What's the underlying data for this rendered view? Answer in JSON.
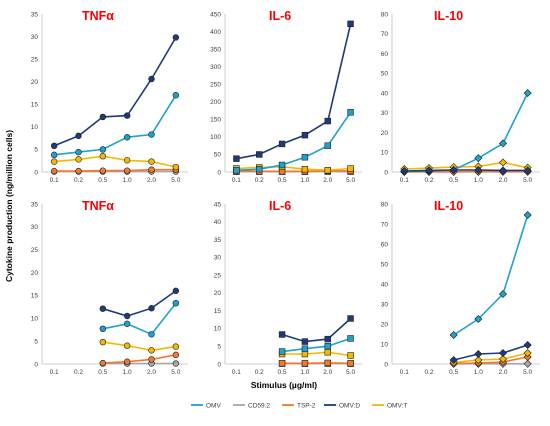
{
  "figure": {
    "ylabel": "Cytokine production (ng/million cells)",
    "xlabel": "Stimulus (µg/ml)"
  },
  "legend": [
    {
      "name": "OMV",
      "color": "#1ea0d0"
    },
    {
      "name": "CD59.2",
      "color": "#a6a6a6"
    },
    {
      "name": "TSP-2",
      "color": "#f07830"
    },
    {
      "name": "OMV:D",
      "color": "#1f3a7a"
    },
    {
      "name": "OMV:T",
      "color": "#f5b800"
    }
  ],
  "chart_data": [
    {
      "type": "line",
      "title": "TNFα",
      "categories": [
        "0.1",
        "0.2",
        "0.5",
        "1.0",
        "2.0",
        "5.0"
      ],
      "ylim": [
        0,
        35
      ],
      "yticks": [
        0,
        5,
        10,
        15,
        20,
        25,
        30,
        35
      ],
      "grid": false,
      "series": [
        {
          "name": "OMV",
          "marker": "circle",
          "values": [
            3.8,
            4.4,
            5.0,
            7.7,
            8.3,
            17.0
          ]
        },
        {
          "name": "CD59.2",
          "marker": "circle",
          "values": [
            0.1,
            0.1,
            0.1,
            0.1,
            0.1,
            0.1
          ]
        },
        {
          "name": "TSP-2",
          "marker": "circle",
          "values": [
            0.2,
            0.2,
            0.3,
            0.3,
            0.5,
            0.5
          ]
        },
        {
          "name": "OMV:D",
          "marker": "circle",
          "values": [
            5.8,
            8.0,
            12.2,
            12.5,
            20.6,
            29.8
          ]
        },
        {
          "name": "OMV:T",
          "marker": "circle",
          "values": [
            2.3,
            2.8,
            3.5,
            2.6,
            2.3,
            1.1
          ]
        }
      ]
    },
    {
      "type": "line",
      "title": "IL-6",
      "categories": [
        "0.1",
        "0.2",
        "0.5",
        "1.0",
        "2.0",
        "5.0"
      ],
      "ylim": [
        0,
        450
      ],
      "yticks": [
        0,
        50,
        100,
        150,
        200,
        250,
        300,
        350,
        400,
        450
      ],
      "grid": false,
      "series": [
        {
          "name": "OMV",
          "marker": "square",
          "values": [
            5,
            8,
            20,
            42,
            75,
            170
          ]
        },
        {
          "name": "CD59.2",
          "marker": "square",
          "values": [
            1,
            1,
            1,
            1,
            1,
            1
          ]
        },
        {
          "name": "TSP-2",
          "marker": "square",
          "values": [
            2,
            2,
            2,
            2,
            3,
            3
          ]
        },
        {
          "name": "OMV:D",
          "marker": "square",
          "values": [
            38,
            50,
            80,
            105,
            145,
            422
          ]
        },
        {
          "name": "OMV:T",
          "marker": "square",
          "values": [
            10,
            13,
            15,
            8,
            5,
            10
          ]
        }
      ]
    },
    {
      "type": "line",
      "title": "IL-10",
      "categories": [
        "0.1",
        "0.2",
        "0.5",
        "1.0",
        "2.0",
        "5.0"
      ],
      "ylim": [
        0,
        80
      ],
      "yticks": [
        0,
        10,
        20,
        30,
        40,
        50,
        60,
        70,
        80
      ],
      "grid": false,
      "series": [
        {
          "name": "OMV",
          "marker": "diamond",
          "values": [
            0.2,
            0.5,
            1.0,
            7.0,
            14.5,
            40.0
          ]
        },
        {
          "name": "CD59.2",
          "marker": "diamond",
          "values": [
            0.1,
            0.1,
            0.1,
            0.1,
            0.1,
            0.1
          ]
        },
        {
          "name": "TSP-2",
          "marker": "diamond",
          "values": [
            0.1,
            0.1,
            0.1,
            0.2,
            0.2,
            0.2
          ]
        },
        {
          "name": "OMV:D",
          "marker": "diamond",
          "values": [
            0.5,
            0.8,
            1.0,
            1.0,
            0.8,
            0.8
          ]
        },
        {
          "name": "OMV:T",
          "marker": "diamond",
          "values": [
            1.5,
            2.0,
            2.5,
            2.8,
            4.8,
            2.2
          ]
        }
      ]
    },
    {
      "type": "line",
      "title": "TNFα",
      "categories": [
        "0.1",
        "0.2",
        "0.5",
        "1.0",
        "2.0",
        "5.0"
      ],
      "ylim": [
        0,
        35
      ],
      "yticks": [
        0,
        5,
        10,
        15,
        20,
        25,
        30,
        35
      ],
      "grid": false,
      "series": [
        {
          "name": "OMV",
          "marker": "circle",
          "values": [
            null,
            null,
            7.7,
            8.8,
            6.5,
            13.3
          ]
        },
        {
          "name": "CD59.2",
          "marker": "circle",
          "values": [
            null,
            null,
            0.1,
            0.1,
            0.1,
            0.1
          ]
        },
        {
          "name": "TSP-2",
          "marker": "circle",
          "values": [
            null,
            null,
            0.2,
            0.5,
            1.0,
            2.0
          ]
        },
        {
          "name": "OMV:D",
          "marker": "circle",
          "values": [
            null,
            null,
            12.1,
            10.5,
            12.2,
            16.0
          ]
        },
        {
          "name": "OMV:T",
          "marker": "circle",
          "values": [
            null,
            null,
            4.8,
            4.0,
            3.0,
            3.8
          ]
        }
      ]
    },
    {
      "type": "line",
      "title": "IL-6",
      "categories": [
        "0.1",
        "0.2",
        "0.5",
        "1.0",
        "2.0",
        "5.0"
      ],
      "ylim": [
        0,
        45
      ],
      "yticks": [
        0,
        5,
        10,
        15,
        20,
        25,
        30,
        35,
        40,
        45
      ],
      "grid": false,
      "series": [
        {
          "name": "OMV",
          "marker": "square",
          "values": [
            null,
            null,
            3.5,
            4.3,
            5.0,
            7.2
          ]
        },
        {
          "name": "CD59.2",
          "marker": "square",
          "values": [
            null,
            null,
            0.1,
            0.1,
            0.1,
            0.1
          ]
        },
        {
          "name": "TSP-2",
          "marker": "square",
          "values": [
            null,
            null,
            0.2,
            0.2,
            0.3,
            0.2
          ]
        },
        {
          "name": "OMV:D",
          "marker": "square",
          "values": [
            null,
            null,
            8.3,
            6.3,
            7.0,
            12.8
          ]
        },
        {
          "name": "OMV:T",
          "marker": "square",
          "values": [
            null,
            null,
            2.8,
            2.8,
            3.3,
            2.4
          ]
        }
      ]
    },
    {
      "type": "line",
      "title": "IL-10",
      "categories": [
        "0.1",
        "0.2",
        "0.5",
        "1.0",
        "2.0",
        "5.0"
      ],
      "ylim": [
        0,
        80
      ],
      "yticks": [
        0,
        10,
        20,
        30,
        40,
        50,
        60,
        70,
        80
      ],
      "grid": false,
      "series": [
        {
          "name": "OMV",
          "marker": "diamond",
          "values": [
            null,
            null,
            14.5,
            22.5,
            35.0,
            74.5
          ]
        },
        {
          "name": "CD59.2",
          "marker": "diamond",
          "values": [
            null,
            null,
            0.1,
            0.1,
            0.1,
            0.1
          ]
        },
        {
          "name": "TSP-2",
          "marker": "diamond",
          "values": [
            null,
            null,
            0.2,
            0.5,
            1.0,
            3.5
          ]
        },
        {
          "name": "OMV:D",
          "marker": "diamond",
          "values": [
            null,
            null,
            2.0,
            5.0,
            5.5,
            9.5
          ]
        },
        {
          "name": "OMV:T",
          "marker": "diamond",
          "values": [
            null,
            null,
            0.8,
            2.0,
            2.5,
            5.5
          ]
        }
      ]
    }
  ]
}
